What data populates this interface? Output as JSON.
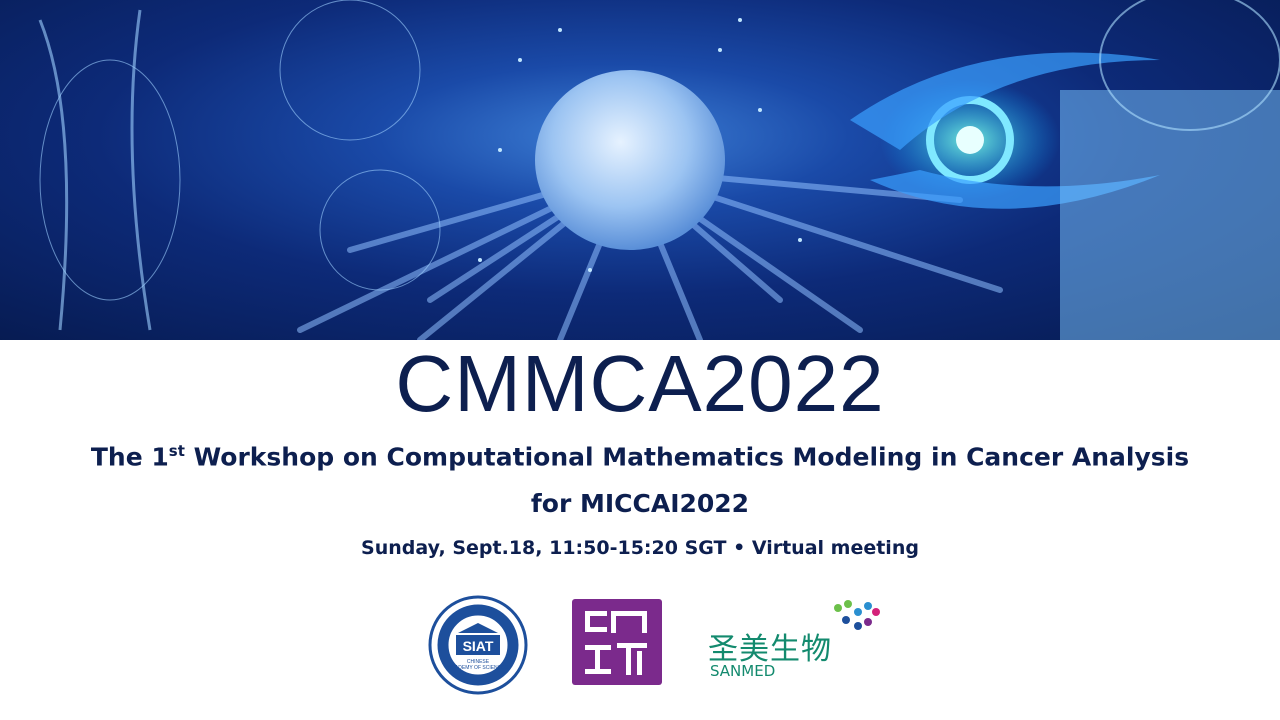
{
  "slide": {
    "title": "CMMCA2022",
    "subtitle_line1_pre": "The 1",
    "subtitle_line1_sup": "st",
    "subtitle_line1_post": " Workshop on Computational Mathematics Modeling in Cancer Analysis",
    "subtitle_line2": "for MICCAI2022",
    "schedule": "Sunday, Sept.18, 11:50-15:20 SGT • Virtual meeting",
    "text_color": "#0d1f4f"
  },
  "logos": [
    {
      "name": "SIAT",
      "text": "SIAT",
      "caption": "CHINESE ACADEMY OF SCIENCES",
      "color": "#1d4f9c"
    },
    {
      "name": "book-logo",
      "color": "#7b2a8c"
    },
    {
      "name": "SANMED",
      "text_cn": "圣美生物",
      "text_en": "SANMED",
      "color": "#138a6e"
    }
  ],
  "banner": {
    "theme": "medical-ai-cancer-cell-illustration"
  }
}
